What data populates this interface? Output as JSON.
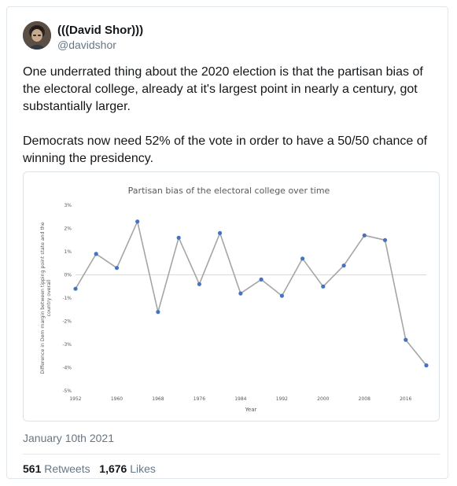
{
  "author": {
    "display_name": "(((David Shor)))",
    "handle": "@davidshor",
    "avatar_icon": "profile-photo"
  },
  "tweet": {
    "text": "One underrated thing about the 2020 election is that the partisan bias of the electoral college, already at it's largest point in nearly a century, got substantially larger.\n\nDemocrats now need 52% of the vote in order to have a 50/50 chance of winning the presidency.",
    "date": "January 10th 2021"
  },
  "stats": {
    "retweets_count": "561",
    "retweets_label": "Retweets",
    "likes_count": "1,676",
    "likes_label": "Likes"
  },
  "colors": {
    "line": "#a5a5a5",
    "marker": "#4472c4",
    "axis_text": "#595959"
  },
  "chart_data": {
    "type": "line",
    "title": "Partisan bias of the electoral college over time",
    "xlabel": "Year",
    "ylabel": "Difference in Dem margin between tipping point state and the country overall",
    "ylabel_lines": [
      "Difference in Dem margin between tipping point state and the",
      "country overall"
    ],
    "x_ticks": [
      "1952",
      "1960",
      "1968",
      "1976",
      "1984",
      "1992",
      "2000",
      "2008",
      "2016"
    ],
    "y_ticks": [
      "3%",
      "2%",
      "1%",
      "0%",
      "-1%",
      "-2%",
      "-3%",
      "-4%",
      "-5%"
    ],
    "ylim": [
      -5,
      3
    ],
    "xlim": [
      1952,
      2020
    ],
    "grid": false,
    "x": [
      1952,
      1956,
      1960,
      1964,
      1968,
      1972,
      1976,
      1980,
      1984,
      1988,
      1992,
      1996,
      2000,
      2004,
      2008,
      2012,
      2016,
      2020
    ],
    "values": [
      -0.6,
      0.9,
      0.3,
      2.3,
      -1.6,
      1.6,
      -0.4,
      1.8,
      -0.8,
      -0.2,
      -0.9,
      0.7,
      -0.5,
      0.4,
      1.7,
      1.5,
      -2.8,
      -3.9
    ]
  }
}
